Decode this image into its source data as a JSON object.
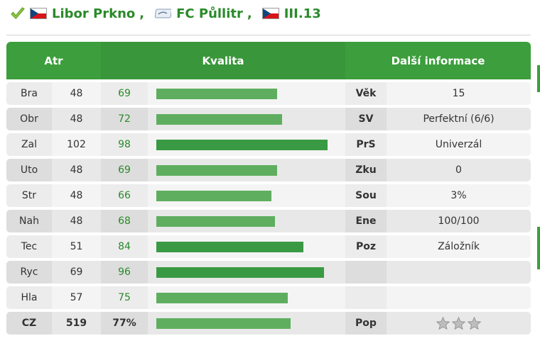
{
  "header": {
    "player_name": "Libor Prkno",
    "name_sep": ",",
    "team_name": "FC Půllitr",
    "team_sep": ",",
    "league": "III.13"
  },
  "table": {
    "col_atr": "Atr",
    "col_kvalita": "Kvalita",
    "col_dalsi": "Další informace",
    "rows": [
      {
        "name": "Bra",
        "base": "48",
        "value": "69",
        "bar": 0.69,
        "label": "Věk",
        "info": "15"
      },
      {
        "name": "Obr",
        "base": "48",
        "value": "72",
        "bar": 0.72,
        "label": "SV",
        "info": "Perfektní (6/6)"
      },
      {
        "name": "Zal",
        "base": "102",
        "value": "98",
        "bar": 0.98,
        "label": "PrS",
        "info": "Univerzál"
      },
      {
        "name": "Uto",
        "base": "48",
        "value": "69",
        "bar": 0.69,
        "label": "Zku",
        "info": "0"
      },
      {
        "name": "Str",
        "base": "48",
        "value": "66",
        "bar": 0.66,
        "label": "Sou",
        "info": "3%"
      },
      {
        "name": "Nah",
        "base": "48",
        "value": "68",
        "bar": 0.68,
        "label": "Ene",
        "info": "100/100"
      },
      {
        "name": "Tec",
        "base": "51",
        "value": "84",
        "bar": 0.84,
        "label": "Poz",
        "info": "Záložník"
      },
      {
        "name": "Ryc",
        "base": "69",
        "value": "96",
        "bar": 0.96,
        "label": "",
        "info": ""
      },
      {
        "name": "Hla",
        "base": "57",
        "value": "75",
        "bar": 0.75,
        "label": "",
        "info": ""
      }
    ],
    "total": {
      "name": "CZ",
      "base": "519",
      "value": "77%",
      "bar": 0.77,
      "label": "Pop",
      "stars": 3
    }
  },
  "colors": {
    "accent": "#3c9e3c",
    "link": "#2a8a2a",
    "bar": "#5fae5f",
    "bar_high": "#3a9a44"
  },
  "icons": [
    "check-icon",
    "flag-cz-icon",
    "team-badge-icon",
    "star-icon"
  ]
}
